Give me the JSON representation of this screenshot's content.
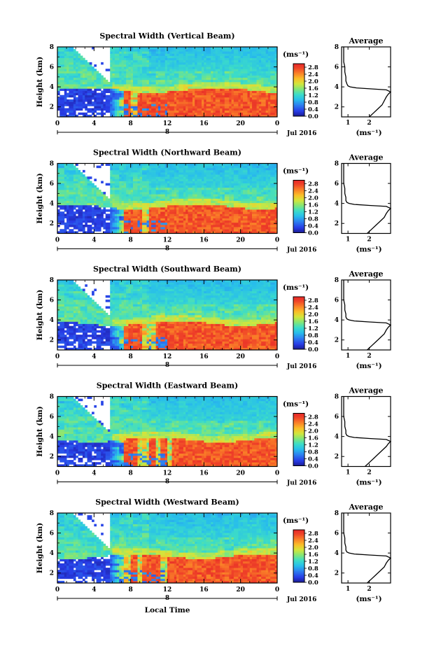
{
  "chart_data": [
    {
      "type": "heatmap",
      "title": "Spectral Width (Vertical Beam)",
      "ylabel": "Height (km)",
      "x_ticks": [
        "0",
        "4",
        "8",
        "12",
        "16",
        "20",
        "0"
      ],
      "y_ticks": [
        "2",
        "4",
        "6",
        "8"
      ],
      "date_label": "Jul 2016",
      "day_label": "8",
      "xlim": [
        0,
        24
      ],
      "ylim": [
        1,
        8
      ],
      "colorbar": {
        "unit": "(ms⁻¹)",
        "ticks": [
          "0.0",
          "0.4",
          "0.8",
          "1.2",
          "1.6",
          "2.0",
          "2.4",
          "2.8"
        ],
        "range": [
          0.0,
          3.0
        ]
      },
      "average_profile": {
        "title": "Average",
        "xlabel": "(ms⁻¹)",
        "x_ticks": [
          "1",
          "2"
        ],
        "y_ticks": [
          "2",
          "4",
          "6",
          "8"
        ],
        "xlim": [
          0.7,
          3.0
        ],
        "ylim": [
          1,
          8
        ],
        "height_km": [
          1.0,
          1.4,
          1.8,
          2.2,
          2.6,
          3.0,
          3.3,
          3.5,
          3.7,
          3.8,
          3.9,
          4.0,
          4.1,
          4.3,
          4.6,
          5.0,
          5.5,
          6.0,
          6.5,
          7.0,
          7.5,
          8.0
        ],
        "width_ms": [
          2.0,
          2.2,
          2.4,
          2.6,
          2.7,
          2.8,
          2.9,
          3.0,
          2.8,
          2.1,
          1.4,
          1.1,
          1.0,
          0.95,
          0.9,
          0.9,
          0.85,
          0.85,
          0.8,
          0.8,
          0.8,
          0.8
        ]
      }
    },
    {
      "type": "heatmap",
      "title": "Spectral Width (Northward Beam)",
      "ylabel": "Height (km)",
      "x_ticks": [
        "0",
        "4",
        "8",
        "12",
        "16",
        "20",
        "0"
      ],
      "y_ticks": [
        "2",
        "4",
        "6",
        "8"
      ],
      "date_label": "Jul 2016",
      "day_label": "8",
      "xlim": [
        0,
        24
      ],
      "ylim": [
        1,
        8
      ],
      "colorbar": {
        "unit": "(ms⁻¹)",
        "ticks": [
          "0.0",
          "0.4",
          "0.8",
          "1.2",
          "1.6",
          "2.0",
          "2.4",
          "2.8"
        ],
        "range": [
          0.0,
          3.0
        ]
      },
      "average_profile": {
        "title": "Average",
        "xlabel": "(ms⁻¹)",
        "x_ticks": [
          "1",
          "2"
        ],
        "y_ticks": [
          "2",
          "4",
          "6",
          "8"
        ],
        "xlim": [
          0.7,
          3.0
        ],
        "ylim": [
          1,
          8
        ],
        "height_km": [
          1.0,
          1.4,
          1.8,
          2.2,
          2.6,
          3.0,
          3.3,
          3.5,
          3.7,
          3.8,
          3.9,
          4.0,
          4.1,
          4.3,
          4.6,
          5.0,
          5.5,
          6.0,
          6.5,
          7.0,
          7.5,
          8.0
        ],
        "width_ms": [
          1.9,
          2.1,
          2.3,
          2.5,
          2.7,
          2.8,
          2.9,
          3.0,
          2.8,
          2.0,
          1.3,
          1.05,
          0.95,
          0.9,
          0.9,
          0.85,
          0.85,
          0.8,
          0.8,
          0.8,
          0.8,
          0.8
        ]
      }
    },
    {
      "type": "heatmap",
      "title": "Spectral Width (Southward Beam)",
      "ylabel": "Height (km)",
      "x_ticks": [
        "0",
        "4",
        "8",
        "12",
        "16",
        "20",
        "0"
      ],
      "y_ticks": [
        "2",
        "4",
        "6",
        "8"
      ],
      "date_label": "Jul 2016",
      "day_label": "8",
      "xlim": [
        0,
        24
      ],
      "ylim": [
        1,
        8
      ],
      "colorbar": {
        "unit": "(ms⁻¹)",
        "ticks": [
          "0.0",
          "0.4",
          "0.8",
          "1.2",
          "1.6",
          "2.0",
          "2.4",
          "2.8"
        ],
        "range": [
          0.0,
          3.0
        ]
      },
      "average_profile": {
        "title": "Average",
        "xlabel": "(ms⁻¹)",
        "x_ticks": [
          "1",
          "2"
        ],
        "y_ticks": [
          "2",
          "4",
          "6",
          "8"
        ],
        "xlim": [
          0.7,
          3.0
        ],
        "ylim": [
          1,
          8
        ],
        "height_km": [
          1.0,
          1.4,
          1.8,
          2.2,
          2.6,
          3.0,
          3.3,
          3.5,
          3.7,
          3.8,
          3.9,
          4.0,
          4.1,
          4.3,
          4.6,
          5.0,
          5.5,
          6.0,
          6.5,
          7.0,
          7.5,
          8.0
        ],
        "width_ms": [
          1.9,
          2.1,
          2.3,
          2.5,
          2.7,
          2.8,
          2.9,
          3.0,
          2.8,
          2.0,
          1.3,
          1.05,
          0.95,
          0.9,
          0.9,
          0.85,
          0.85,
          0.8,
          0.8,
          0.8,
          0.8,
          0.8
        ]
      }
    },
    {
      "type": "heatmap",
      "title": "Spectral Width (Eastward Beam)",
      "ylabel": "Height (km)",
      "x_ticks": [
        "0",
        "4",
        "8",
        "12",
        "16",
        "20",
        "0"
      ],
      "y_ticks": [
        "2",
        "4",
        "6",
        "8"
      ],
      "date_label": "Jul 2016",
      "day_label": "8",
      "xlim": [
        0,
        24
      ],
      "ylim": [
        1,
        8
      ],
      "colorbar": {
        "unit": "(ms⁻¹)",
        "ticks": [
          "0.0",
          "0.4",
          "0.8",
          "1.2",
          "1.6",
          "2.0",
          "2.4",
          "2.8"
        ],
        "range": [
          0.0,
          3.0
        ]
      },
      "average_profile": {
        "title": "Average",
        "xlabel": "(ms⁻¹)",
        "x_ticks": [
          "1",
          "2"
        ],
        "y_ticks": [
          "2",
          "4",
          "6",
          "8"
        ],
        "xlim": [
          0.7,
          3.0
        ],
        "ylim": [
          1,
          8
        ],
        "height_km": [
          1.0,
          1.4,
          1.8,
          2.2,
          2.6,
          3.0,
          3.3,
          3.5,
          3.7,
          3.8,
          3.9,
          4.0,
          4.1,
          4.3,
          4.6,
          5.0,
          5.5,
          6.0,
          6.5,
          7.0,
          7.5,
          8.0
        ],
        "width_ms": [
          1.8,
          2.0,
          2.2,
          2.4,
          2.6,
          2.8,
          2.9,
          3.0,
          2.8,
          2.0,
          1.3,
          1.05,
          0.95,
          0.9,
          0.9,
          0.85,
          0.85,
          0.8,
          0.8,
          0.8,
          0.8,
          0.8
        ]
      }
    },
    {
      "type": "heatmap",
      "title": "Spectral Width (Westward Beam)",
      "ylabel": "Height (km)",
      "xlabel": "Local Time",
      "x_ticks": [
        "0",
        "4",
        "8",
        "12",
        "16",
        "20",
        "0"
      ],
      "y_ticks": [
        "2",
        "4",
        "6",
        "8"
      ],
      "date_label": "Jul 2016",
      "day_label": "8",
      "xlim": [
        0,
        24
      ],
      "ylim": [
        1,
        8
      ],
      "colorbar": {
        "unit": "(ms⁻¹)",
        "ticks": [
          "0.0",
          "0.4",
          "0.8",
          "1.2",
          "1.6",
          "2.0",
          "2.4",
          "2.8"
        ],
        "range": [
          0.0,
          3.0
        ]
      },
      "average_profile": {
        "title": "Average",
        "xlabel": "(ms⁻¹)",
        "x_ticks": [
          "1",
          "2"
        ],
        "y_ticks": [
          "2",
          "4",
          "6",
          "8"
        ],
        "xlim": [
          0.7,
          3.0
        ],
        "ylim": [
          1,
          8
        ],
        "height_km": [
          1.0,
          1.4,
          1.8,
          2.2,
          2.6,
          3.0,
          3.3,
          3.5,
          3.7,
          3.8,
          3.9,
          4.0,
          4.1,
          4.3,
          4.6,
          5.0,
          5.5,
          6.0,
          6.5,
          7.0,
          7.5,
          8.0
        ],
        "width_ms": [
          1.9,
          2.1,
          2.3,
          2.5,
          2.7,
          2.8,
          2.9,
          3.0,
          2.8,
          2.0,
          1.3,
          1.05,
          0.95,
          0.9,
          0.9,
          0.85,
          0.85,
          0.8,
          0.8,
          0.8,
          0.8,
          0.8
        ]
      }
    }
  ]
}
